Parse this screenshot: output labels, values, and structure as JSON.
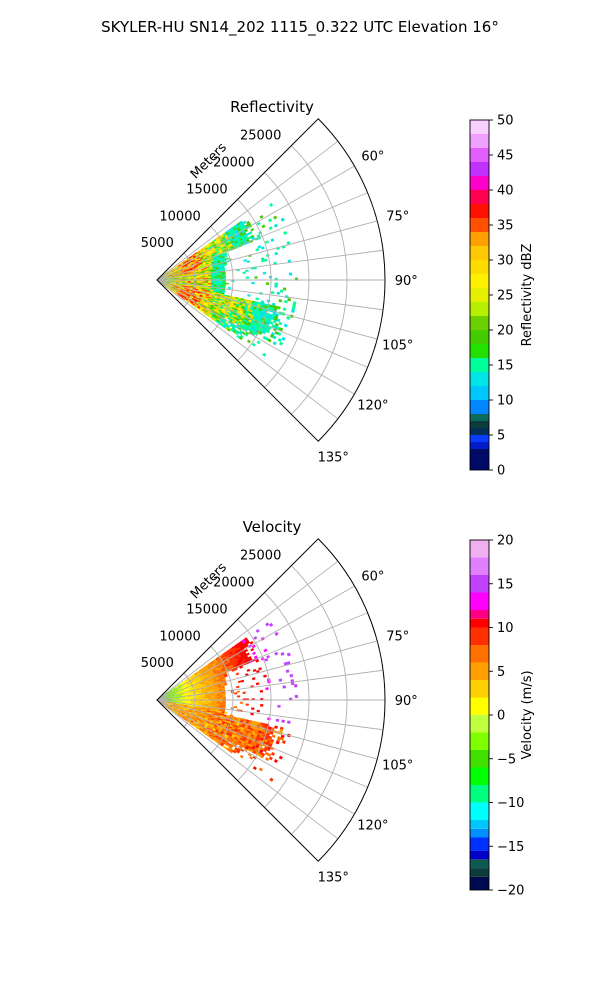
{
  "figure": {
    "title": "SKYLER-HU  SN14_202  1115_0.322 UTC Elevation 16°"
  },
  "chart_data": [
    {
      "type": "heatmap",
      "projection": "polar-sector",
      "title": "Reflectivity",
      "range_label": "Meters",
      "range_ticks": [
        "5000",
        "10000",
        "15000",
        "20000",
        "25000"
      ],
      "range_tick_values": [
        5000,
        10000,
        15000,
        20000,
        25000
      ],
      "range_max": 30000,
      "azimuth_range_deg": [
        45,
        135
      ],
      "azimuth_ticks": [
        "60°",
        "75°",
        "90°",
        "105°",
        "120°",
        "135°"
      ],
      "azimuth_tick_values": [
        60,
        75,
        90,
        105,
        120,
        135
      ],
      "grid": true,
      "colorbar": {
        "label": "Reflectivity dBZ",
        "vmin": 0,
        "vmax": 50,
        "ticks": [
          "0",
          "5",
          "10",
          "15",
          "20",
          "25",
          "30",
          "35",
          "40",
          "45",
          "50"
        ],
        "tick_values": [
          0,
          5,
          10,
          15,
          20,
          25,
          30,
          35,
          40,
          45,
          50
        ],
        "stops": [
          [
            0,
            "#000a66"
          ],
          [
            3,
            "#001ecc"
          ],
          [
            4,
            "#0a3cff"
          ],
          [
            5,
            "#00305a"
          ],
          [
            6,
            "#0a3c3c"
          ],
          [
            7,
            "#0e6a5e"
          ],
          [
            8,
            "#0086ff"
          ],
          [
            10,
            "#00c8ff"
          ],
          [
            12,
            "#00e6e6"
          ],
          [
            14,
            "#00ff9a"
          ],
          [
            16,
            "#22e000"
          ],
          [
            18,
            "#44cc00"
          ],
          [
            20,
            "#6ad000"
          ],
          [
            22,
            "#b4f000"
          ],
          [
            24,
            "#e6f000"
          ],
          [
            26,
            "#fff000"
          ],
          [
            28,
            "#ffdc00"
          ],
          [
            30,
            "#ffc800"
          ],
          [
            32,
            "#ffa000"
          ],
          [
            34,
            "#ff5000"
          ],
          [
            36,
            "#ff1000"
          ],
          [
            38,
            "#ff0050"
          ],
          [
            40,
            "#ff00c8"
          ],
          [
            42,
            "#c030ff"
          ],
          [
            44,
            "#e060ff"
          ],
          [
            46,
            "#f0a0ff"
          ],
          [
            48,
            "#f8d0ff"
          ],
          [
            50,
            "#ffe8ff"
          ]
        ]
      },
      "echo": {
        "color_ramp": [
          "#00e6e6",
          "#00ff9a",
          "#44cc00",
          "#b4f000",
          "#fff000",
          "#ffc800",
          "#ff5000",
          "#ff1000"
        ],
        "min_azimuth_deg": 55,
        "max_azimuth_deg": 125,
        "max_range_m": 16500
      }
    },
    {
      "type": "heatmap",
      "projection": "polar-sector",
      "title": "Velocity",
      "range_label": "Meters",
      "range_ticks": [
        "5000",
        "10000",
        "15000",
        "20000",
        "25000"
      ],
      "range_tick_values": [
        5000,
        10000,
        15000,
        20000,
        25000
      ],
      "range_max": 30000,
      "azimuth_range_deg": [
        45,
        135
      ],
      "azimuth_ticks": [
        "60°",
        "75°",
        "90°",
        "105°",
        "120°",
        "135°"
      ],
      "azimuth_tick_values": [
        60,
        75,
        90,
        105,
        120,
        135
      ],
      "grid": true,
      "colorbar": {
        "label": "Velocity (m/s)",
        "vmin": -20,
        "vmax": 20,
        "ticks": [
          "−20",
          "−15",
          "−10",
          "−5",
          "0",
          "5",
          "10",
          "15",
          "20"
        ],
        "tick_values": [
          -20,
          -15,
          -10,
          -5,
          0,
          5,
          10,
          15,
          20
        ],
        "stops": [
          [
            -20,
            "#000a50"
          ],
          [
            -18.5,
            "#0a3c3c"
          ],
          [
            -17.5,
            "#0e5a50"
          ],
          [
            -16.5,
            "#0000c8"
          ],
          [
            -15.5,
            "#0030ff"
          ],
          [
            -14,
            "#0090ff"
          ],
          [
            -13,
            "#00c8ff"
          ],
          [
            -12,
            "#00ffff"
          ],
          [
            -10,
            "#00ff80"
          ],
          [
            -8,
            "#00ff00"
          ],
          [
            -6,
            "#40e000"
          ],
          [
            -4,
            "#80ff00"
          ],
          [
            -2,
            "#c0ff40"
          ],
          [
            0,
            "#ffff00"
          ],
          [
            2,
            "#ffd000"
          ],
          [
            4,
            "#ffa000"
          ],
          [
            6,
            "#ff7000"
          ],
          [
            8,
            "#ff3000"
          ],
          [
            10,
            "#ff0000"
          ],
          [
            11,
            "#ff0080"
          ],
          [
            12,
            "#ff00ff"
          ],
          [
            14,
            "#c040ff"
          ],
          [
            16,
            "#e080ff"
          ],
          [
            18,
            "#f0b0f0"
          ],
          [
            20,
            "#ffe0ff"
          ]
        ]
      },
      "echo": {
        "color_ramp": [
          "#40e000",
          "#80ff00",
          "#ffff00",
          "#ffd000",
          "#ffa000",
          "#ff7000",
          "#ff3000",
          "#ff0000",
          "#ff00ff",
          "#c040ff"
        ],
        "min_azimuth_deg": 55,
        "max_azimuth_deg": 125,
        "max_range_m": 16500
      }
    }
  ]
}
